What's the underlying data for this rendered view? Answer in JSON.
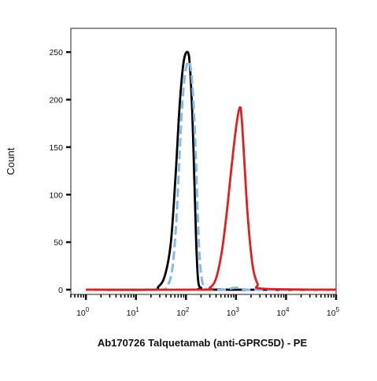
{
  "chart_data": {
    "type": "line",
    "title": "",
    "xlabel": "Ab170726 Talquetamab (anti-GPRC5D) - PE",
    "ylabel": "Count",
    "x_scale": "log",
    "xlim": [
      0.5,
      100000
    ],
    "ylim": [
      -5,
      275
    ],
    "x_ticks": [
      {
        "value": 1,
        "base": "10",
        "exp": "0"
      },
      {
        "value": 10,
        "base": "10",
        "exp": "1"
      },
      {
        "value": 100,
        "base": "10",
        "exp": "2"
      },
      {
        "value": 1000,
        "base": "10",
        "exp": "3"
      },
      {
        "value": 10000,
        "base": "10",
        "exp": "4"
      },
      {
        "value": 100000,
        "base": "10",
        "exp": "5"
      }
    ],
    "y_ticks": [
      0,
      50,
      100,
      150,
      200,
      250
    ],
    "grid": false,
    "series": [
      {
        "color": "#000000",
        "dash": "solid",
        "points": [
          [
            1,
            0
          ],
          [
            20,
            0
          ],
          [
            28,
            3
          ],
          [
            38,
            15
          ],
          [
            50,
            50
          ],
          [
            62,
            120
          ],
          [
            75,
            195
          ],
          [
            90,
            240
          ],
          [
            108,
            250
          ],
          [
            120,
            235
          ],
          [
            135,
            180
          ],
          [
            148,
            110
          ],
          [
            160,
            50
          ],
          [
            175,
            10
          ],
          [
            200,
            2
          ],
          [
            300,
            0
          ],
          [
            100000,
            0
          ]
        ]
      },
      {
        "color": "#85B9E6",
        "dash": "dashed",
        "points": [
          [
            1,
            0
          ],
          [
            30,
            0
          ],
          [
            40,
            2
          ],
          [
            52,
            18
          ],
          [
            62,
            60
          ],
          [
            72,
            125
          ],
          [
            82,
            185
          ],
          [
            95,
            225
          ],
          [
            110,
            240
          ],
          [
            125,
            232
          ],
          [
            140,
            200
          ],
          [
            155,
            150
          ],
          [
            170,
            85
          ],
          [
            190,
            30
          ],
          [
            220,
            5
          ],
          [
            280,
            0
          ],
          [
            600,
            0
          ],
          [
            1000,
            2
          ],
          [
            2000,
            0
          ],
          [
            100000,
            0
          ]
        ]
      },
      {
        "color": "#E02020",
        "dash": "solid",
        "points": [
          [
            1,
            0
          ],
          [
            200,
            0
          ],
          [
            300,
            2
          ],
          [
            400,
            12
          ],
          [
            520,
            40
          ],
          [
            650,
            80
          ],
          [
            780,
            120
          ],
          [
            900,
            150
          ],
          [
            1050,
            178
          ],
          [
            1200,
            192
          ],
          [
            1300,
            180
          ],
          [
            1450,
            140
          ],
          [
            1650,
            90
          ],
          [
            1900,
            50
          ],
          [
            2200,
            22
          ],
          [
            2700,
            6
          ],
          [
            3500,
            1
          ],
          [
            100000,
            0
          ]
        ]
      }
    ]
  }
}
